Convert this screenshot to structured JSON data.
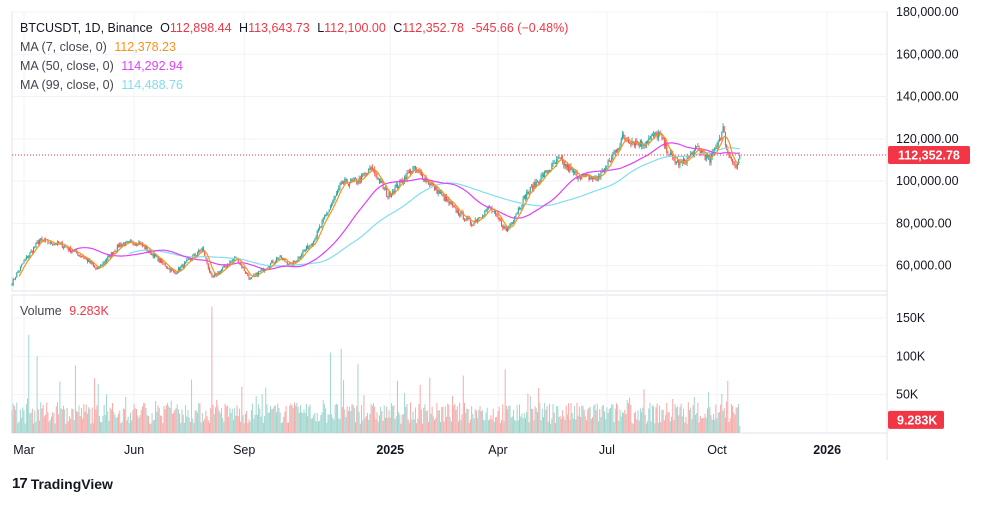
{
  "legend": {
    "symbol": "BTCUSDT, 1D, Binance",
    "o_label": "O",
    "o_value": "112,898.44",
    "h_label": "H",
    "h_value": "113,643.73",
    "l_label": "L",
    "l_value": "112,100.00",
    "c_label": "C",
    "c_value": "112,352.78",
    "change": "-545.66 (−0.48%)",
    "ma7_label": "MA (7, close, 0)",
    "ma7_value": "112,378.23",
    "ma50_label": "MA (50, close, 0)",
    "ma50_value": "114,292.94",
    "ma99_label": "MA (99, close, 0)",
    "ma99_value": "114,488.76",
    "volume_label": "Volume",
    "volume_value": "9.283K"
  },
  "colors": {
    "up": "#26a69a",
    "down": "#ef5350",
    "up_vol": "#9fd6cf",
    "down_vol": "#f7a9a7",
    "ma7": "#f7931a",
    "ma50": "#e040fb",
    "ma99": "#80deea",
    "grid": "#f0f3fa",
    "text": "#131722",
    "last_price_tag": "#f23645"
  },
  "footer": {
    "brand": "TradingView"
  },
  "chart_data": [
    {
      "type": "candlestick",
      "title": "BTCUSDT, 1D, Binance",
      "x_range": [
        "2024-02-20",
        "2026-02-20"
      ],
      "last_candle_date": "2025-10-20",
      "ylim": [
        48000,
        180000
      ],
      "y_ticks": [
        60000,
        80000,
        100000,
        120000,
        140000,
        160000,
        180000
      ],
      "y_tick_labels": [
        "60,000.00",
        "80,000.00",
        "100,000.00",
        "120,000.00",
        "140,000.00",
        "160,000.00",
        "180,000.00"
      ],
      "x_tick_labels": [
        "Mar",
        "Jun",
        "Sep",
        "2025",
        "Apr",
        "Jul",
        "Oct",
        "2026"
      ],
      "x_tick_dates": [
        "2024-03-01",
        "2024-06-01",
        "2024-09-01",
        "2025-01-01",
        "2025-04-01",
        "2025-07-01",
        "2025-10-01",
        "2026-01-01"
      ],
      "last_price": 112352.78,
      "last_price_label": "112,352.78",
      "price_anchors": [
        [
          "2024-02-20",
          52000
        ],
        [
          "2024-03-01",
          62000
        ],
        [
          "2024-03-14",
          72000
        ],
        [
          "2024-04-01",
          70000
        ],
        [
          "2024-04-20",
          64000
        ],
        [
          "2024-05-01",
          58000
        ],
        [
          "2024-05-20",
          70000
        ],
        [
          "2024-06-05",
          71000
        ],
        [
          "2024-06-25",
          61000
        ],
        [
          "2024-07-05",
          56500
        ],
        [
          "2024-07-28",
          68000
        ],
        [
          "2024-08-05",
          54000
        ],
        [
          "2024-08-25",
          64000
        ],
        [
          "2024-09-06",
          53500
        ],
        [
          "2024-09-30",
          64000
        ],
        [
          "2024-10-10",
          60000
        ],
        [
          "2024-10-29",
          72000
        ],
        [
          "2024-11-12",
          88000
        ],
        [
          "2024-11-22",
          99000
        ],
        [
          "2024-12-05",
          100000
        ],
        [
          "2024-12-17",
          106000
        ],
        [
          "2024-12-30",
          93000
        ],
        [
          "2025-01-20",
          106000
        ],
        [
          "2025-02-05",
          98000
        ],
        [
          "2025-02-25",
          86000
        ],
        [
          "2025-03-10",
          80000
        ],
        [
          "2025-03-25",
          87500
        ],
        [
          "2025-04-08",
          76500
        ],
        [
          "2025-04-25",
          94000
        ],
        [
          "2025-05-10",
          103500
        ],
        [
          "2025-05-22",
          110000
        ],
        [
          "2025-06-05",
          103000
        ],
        [
          "2025-06-22",
          101000
        ],
        [
          "2025-07-01",
          107000
        ],
        [
          "2025-07-14",
          120500
        ],
        [
          "2025-07-30",
          117500
        ],
        [
          "2025-08-13",
          122500
        ],
        [
          "2025-08-25",
          110000
        ],
        [
          "2025-09-01",
          108000
        ],
        [
          "2025-09-15",
          115500
        ],
        [
          "2025-09-25",
          109500
        ],
        [
          "2025-10-06",
          124500
        ],
        [
          "2025-10-10",
          113000
        ],
        [
          "2025-10-14",
          110500
        ],
        [
          "2025-10-17",
          106000
        ],
        [
          "2025-10-20",
          112352.78
        ]
      ],
      "moving_averages": [
        {
          "name": "MA (7, close, 0)",
          "value": 112378.23
        },
        {
          "name": "MA (50, close, 0)",
          "value": 114292.94
        },
        {
          "name": "MA (99, close, 0)",
          "value": 114488.76
        }
      ]
    },
    {
      "type": "bar",
      "title": "Volume",
      "ylim": [
        0,
        180000
      ],
      "y_ticks": [
        50000,
        100000,
        150000
      ],
      "y_tick_labels": [
        "50K",
        "100K",
        "150K"
      ],
      "last_value": 9283,
      "last_value_label": "9.283K",
      "volume_spikes": [
        [
          "2024-03-05",
          128000
        ],
        [
          "2024-03-12",
          100000
        ],
        [
          "2024-04-13",
          88000
        ],
        [
          "2024-08-05",
          165000
        ],
        [
          "2024-11-12",
          105000
        ],
        [
          "2024-11-21",
          110000
        ],
        [
          "2024-12-05",
          90000
        ],
        [
          "2025-02-03",
          72000
        ],
        [
          "2025-03-03",
          75000
        ],
        [
          "2025-04-07",
          83000
        ],
        [
          "2025-10-10",
          68000
        ]
      ]
    }
  ]
}
